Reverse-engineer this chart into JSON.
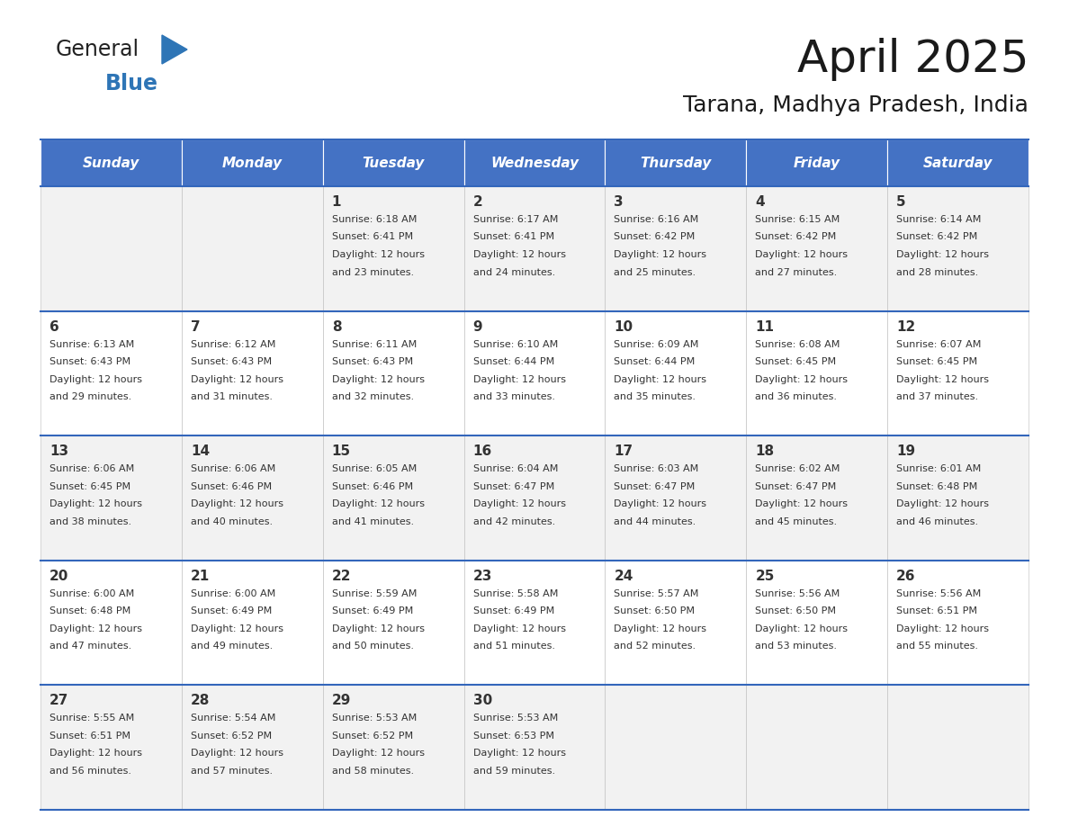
{
  "title": "April 2025",
  "subtitle": "Tarana, Madhya Pradesh, India",
  "header_bg_color": "#4472C4",
  "header_text_color": "#FFFFFF",
  "cell_bg_even": "#F2F2F2",
  "cell_bg_odd": "#FFFFFF",
  "text_color": "#333333",
  "border_color": "#3366BB",
  "days_of_week": [
    "Sunday",
    "Monday",
    "Tuesday",
    "Wednesday",
    "Thursday",
    "Friday",
    "Saturday"
  ],
  "calendar_data": [
    [
      {
        "day": "",
        "sunrise": "",
        "sunset": "",
        "daylight_hrs": "",
        "daylight_min": ""
      },
      {
        "day": "",
        "sunrise": "",
        "sunset": "",
        "daylight_hrs": "",
        "daylight_min": ""
      },
      {
        "day": "1",
        "sunrise": "6:18 AM",
        "sunset": "6:41 PM",
        "daylight_hrs": "12 hours",
        "daylight_min": "and 23 minutes."
      },
      {
        "day": "2",
        "sunrise": "6:17 AM",
        "sunset": "6:41 PM",
        "daylight_hrs": "12 hours",
        "daylight_min": "and 24 minutes."
      },
      {
        "day": "3",
        "sunrise": "6:16 AM",
        "sunset": "6:42 PM",
        "daylight_hrs": "12 hours",
        "daylight_min": "and 25 minutes."
      },
      {
        "day": "4",
        "sunrise": "6:15 AM",
        "sunset": "6:42 PM",
        "daylight_hrs": "12 hours",
        "daylight_min": "and 27 minutes."
      },
      {
        "day": "5",
        "sunrise": "6:14 AM",
        "sunset": "6:42 PM",
        "daylight_hrs": "12 hours",
        "daylight_min": "and 28 minutes."
      }
    ],
    [
      {
        "day": "6",
        "sunrise": "6:13 AM",
        "sunset": "6:43 PM",
        "daylight_hrs": "12 hours",
        "daylight_min": "and 29 minutes."
      },
      {
        "day": "7",
        "sunrise": "6:12 AM",
        "sunset": "6:43 PM",
        "daylight_hrs": "12 hours",
        "daylight_min": "and 31 minutes."
      },
      {
        "day": "8",
        "sunrise": "6:11 AM",
        "sunset": "6:43 PM",
        "daylight_hrs": "12 hours",
        "daylight_min": "and 32 minutes."
      },
      {
        "day": "9",
        "sunrise": "6:10 AM",
        "sunset": "6:44 PM",
        "daylight_hrs": "12 hours",
        "daylight_min": "and 33 minutes."
      },
      {
        "day": "10",
        "sunrise": "6:09 AM",
        "sunset": "6:44 PM",
        "daylight_hrs": "12 hours",
        "daylight_min": "and 35 minutes."
      },
      {
        "day": "11",
        "sunrise": "6:08 AM",
        "sunset": "6:45 PM",
        "daylight_hrs": "12 hours",
        "daylight_min": "and 36 minutes."
      },
      {
        "day": "12",
        "sunrise": "6:07 AM",
        "sunset": "6:45 PM",
        "daylight_hrs": "12 hours",
        "daylight_min": "and 37 minutes."
      }
    ],
    [
      {
        "day": "13",
        "sunrise": "6:06 AM",
        "sunset": "6:45 PM",
        "daylight_hrs": "12 hours",
        "daylight_min": "and 38 minutes."
      },
      {
        "day": "14",
        "sunrise": "6:06 AM",
        "sunset": "6:46 PM",
        "daylight_hrs": "12 hours",
        "daylight_min": "and 40 minutes."
      },
      {
        "day": "15",
        "sunrise": "6:05 AM",
        "sunset": "6:46 PM",
        "daylight_hrs": "12 hours",
        "daylight_min": "and 41 minutes."
      },
      {
        "day": "16",
        "sunrise": "6:04 AM",
        "sunset": "6:47 PM",
        "daylight_hrs": "12 hours",
        "daylight_min": "and 42 minutes."
      },
      {
        "day": "17",
        "sunrise": "6:03 AM",
        "sunset": "6:47 PM",
        "daylight_hrs": "12 hours",
        "daylight_min": "and 44 minutes."
      },
      {
        "day": "18",
        "sunrise": "6:02 AM",
        "sunset": "6:47 PM",
        "daylight_hrs": "12 hours",
        "daylight_min": "and 45 minutes."
      },
      {
        "day": "19",
        "sunrise": "6:01 AM",
        "sunset": "6:48 PM",
        "daylight_hrs": "12 hours",
        "daylight_min": "and 46 minutes."
      }
    ],
    [
      {
        "day": "20",
        "sunrise": "6:00 AM",
        "sunset": "6:48 PM",
        "daylight_hrs": "12 hours",
        "daylight_min": "and 47 minutes."
      },
      {
        "day": "21",
        "sunrise": "6:00 AM",
        "sunset": "6:49 PM",
        "daylight_hrs": "12 hours",
        "daylight_min": "and 49 minutes."
      },
      {
        "day": "22",
        "sunrise": "5:59 AM",
        "sunset": "6:49 PM",
        "daylight_hrs": "12 hours",
        "daylight_min": "and 50 minutes."
      },
      {
        "day": "23",
        "sunrise": "5:58 AM",
        "sunset": "6:49 PM",
        "daylight_hrs": "12 hours",
        "daylight_min": "and 51 minutes."
      },
      {
        "day": "24",
        "sunrise": "5:57 AM",
        "sunset": "6:50 PM",
        "daylight_hrs": "12 hours",
        "daylight_min": "and 52 minutes."
      },
      {
        "day": "25",
        "sunrise": "5:56 AM",
        "sunset": "6:50 PM",
        "daylight_hrs": "12 hours",
        "daylight_min": "and 53 minutes."
      },
      {
        "day": "26",
        "sunrise": "5:56 AM",
        "sunset": "6:51 PM",
        "daylight_hrs": "12 hours",
        "daylight_min": "and 55 minutes."
      }
    ],
    [
      {
        "day": "27",
        "sunrise": "5:55 AM",
        "sunset": "6:51 PM",
        "daylight_hrs": "12 hours",
        "daylight_min": "and 56 minutes."
      },
      {
        "day": "28",
        "sunrise": "5:54 AM",
        "sunset": "6:52 PM",
        "daylight_hrs": "12 hours",
        "daylight_min": "and 57 minutes."
      },
      {
        "day": "29",
        "sunrise": "5:53 AM",
        "sunset": "6:52 PM",
        "daylight_hrs": "12 hours",
        "daylight_min": "and 58 minutes."
      },
      {
        "day": "30",
        "sunrise": "5:53 AM",
        "sunset": "6:53 PM",
        "daylight_hrs": "12 hours",
        "daylight_min": "and 59 minutes."
      },
      {
        "day": "",
        "sunrise": "",
        "sunset": "",
        "daylight_hrs": "",
        "daylight_min": ""
      },
      {
        "day": "",
        "sunrise": "",
        "sunset": "",
        "daylight_hrs": "",
        "daylight_min": ""
      },
      {
        "day": "",
        "sunrise": "",
        "sunset": "",
        "daylight_hrs": "",
        "daylight_min": ""
      }
    ]
  ],
  "logo_triangle_color": "#2E75B6",
  "title_fontsize": 36,
  "subtitle_fontsize": 18,
  "header_fontsize": 11,
  "day_num_fontsize": 11,
  "cell_text_fontsize": 8
}
